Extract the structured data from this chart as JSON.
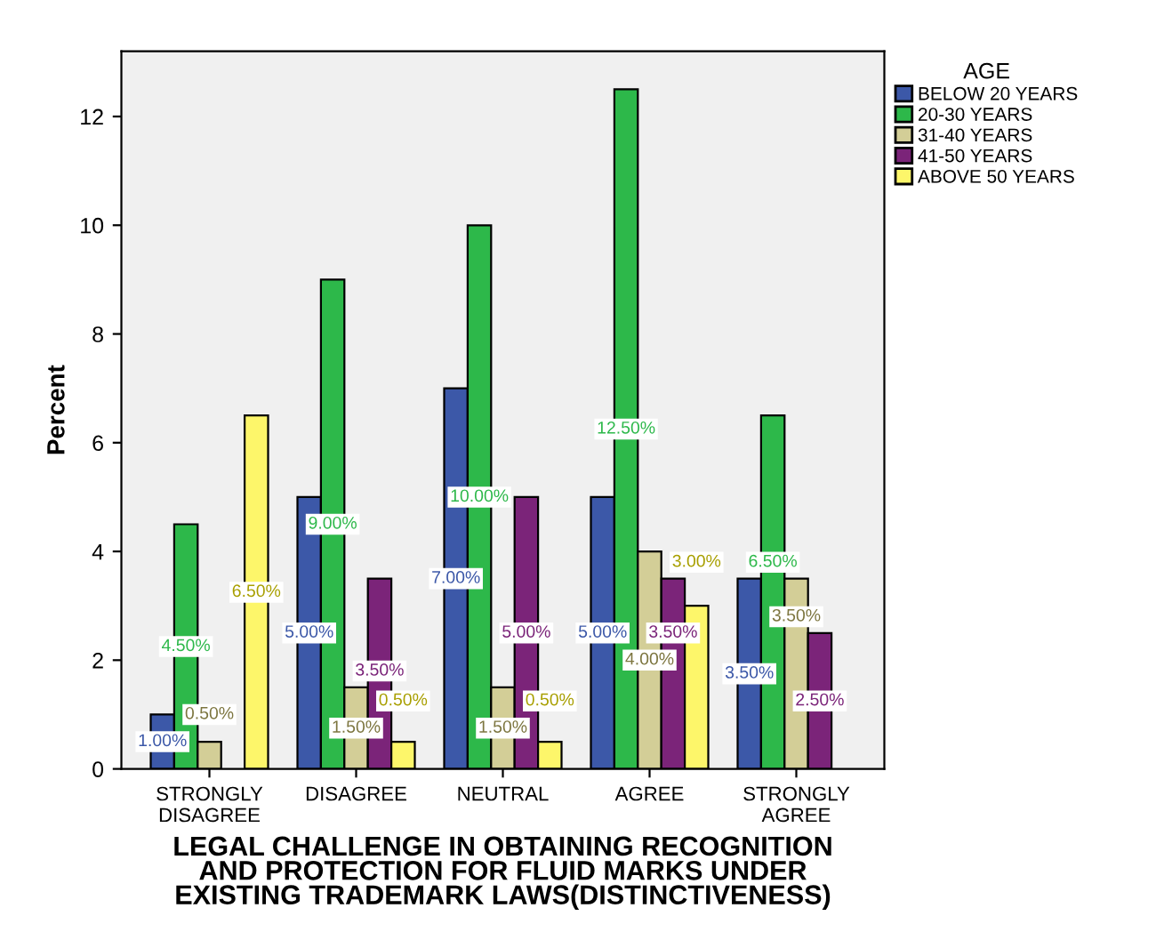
{
  "chart_data": {
    "type": "bar",
    "xlabel": "LEGAL CHALLENGE IN OBTAINING RECOGNITION\nAND PROTECTION FOR FLUID MARKS UNDER\nEXISTING TRADEMARK LAWS(DISTINCTIVENESS)",
    "ylabel": "Percent",
    "legend_title": "AGE",
    "legend": "top right",
    "categories": [
      "STRONGLY\nDISAGREE",
      "DISAGREE",
      "NEUTRAL",
      "AGREE",
      "STRONGLY\nAGREE"
    ],
    "ylim": [
      0,
      13.2
    ],
    "yticks": [
      0,
      2,
      4,
      6,
      8,
      10,
      12
    ],
    "series": [
      {
        "name": "BELOW 20 YEARS",
        "color": "#3c58a8",
        "values": [
          1.0,
          5.0,
          7.0,
          5.0,
          3.5
        ],
        "value_labels": [
          "1.00%",
          "5.00%",
          "7.00%",
          "5.00%",
          "3.50%"
        ]
      },
      {
        "name": "20-30 YEARS",
        "color": "#2db84a",
        "values": [
          4.5,
          9.0,
          10.0,
          12.5,
          6.5
        ],
        "value_labels": [
          "4.50%",
          "9.00%",
          "10.00%",
          "12.50%",
          "6.50%"
        ]
      },
      {
        "name": "31-40 YEARS",
        "color": "#d3ce97",
        "values": [
          0.5,
          1.5,
          1.5,
          4.0,
          3.5
        ],
        "value_labels": [
          "0.50%",
          "1.50%",
          "1.50%",
          "4.00%",
          "3.50%"
        ]
      },
      {
        "name": "41-50 YEARS",
        "color": "#7b2479",
        "values": [
          null,
          3.5,
          5.0,
          3.5,
          2.5
        ],
        "value_labels": [
          null,
          "3.50%",
          "5.00%",
          "3.50%",
          "2.50%"
        ]
      },
      {
        "name": "ABOVE 50 YEARS",
        "color": "#fdf66a",
        "values": [
          6.5,
          0.5,
          0.5,
          3.0,
          null
        ],
        "value_labels": [
          "6.50%",
          "0.50%",
          "0.50%",
          "3.00%",
          null
        ]
      }
    ]
  }
}
